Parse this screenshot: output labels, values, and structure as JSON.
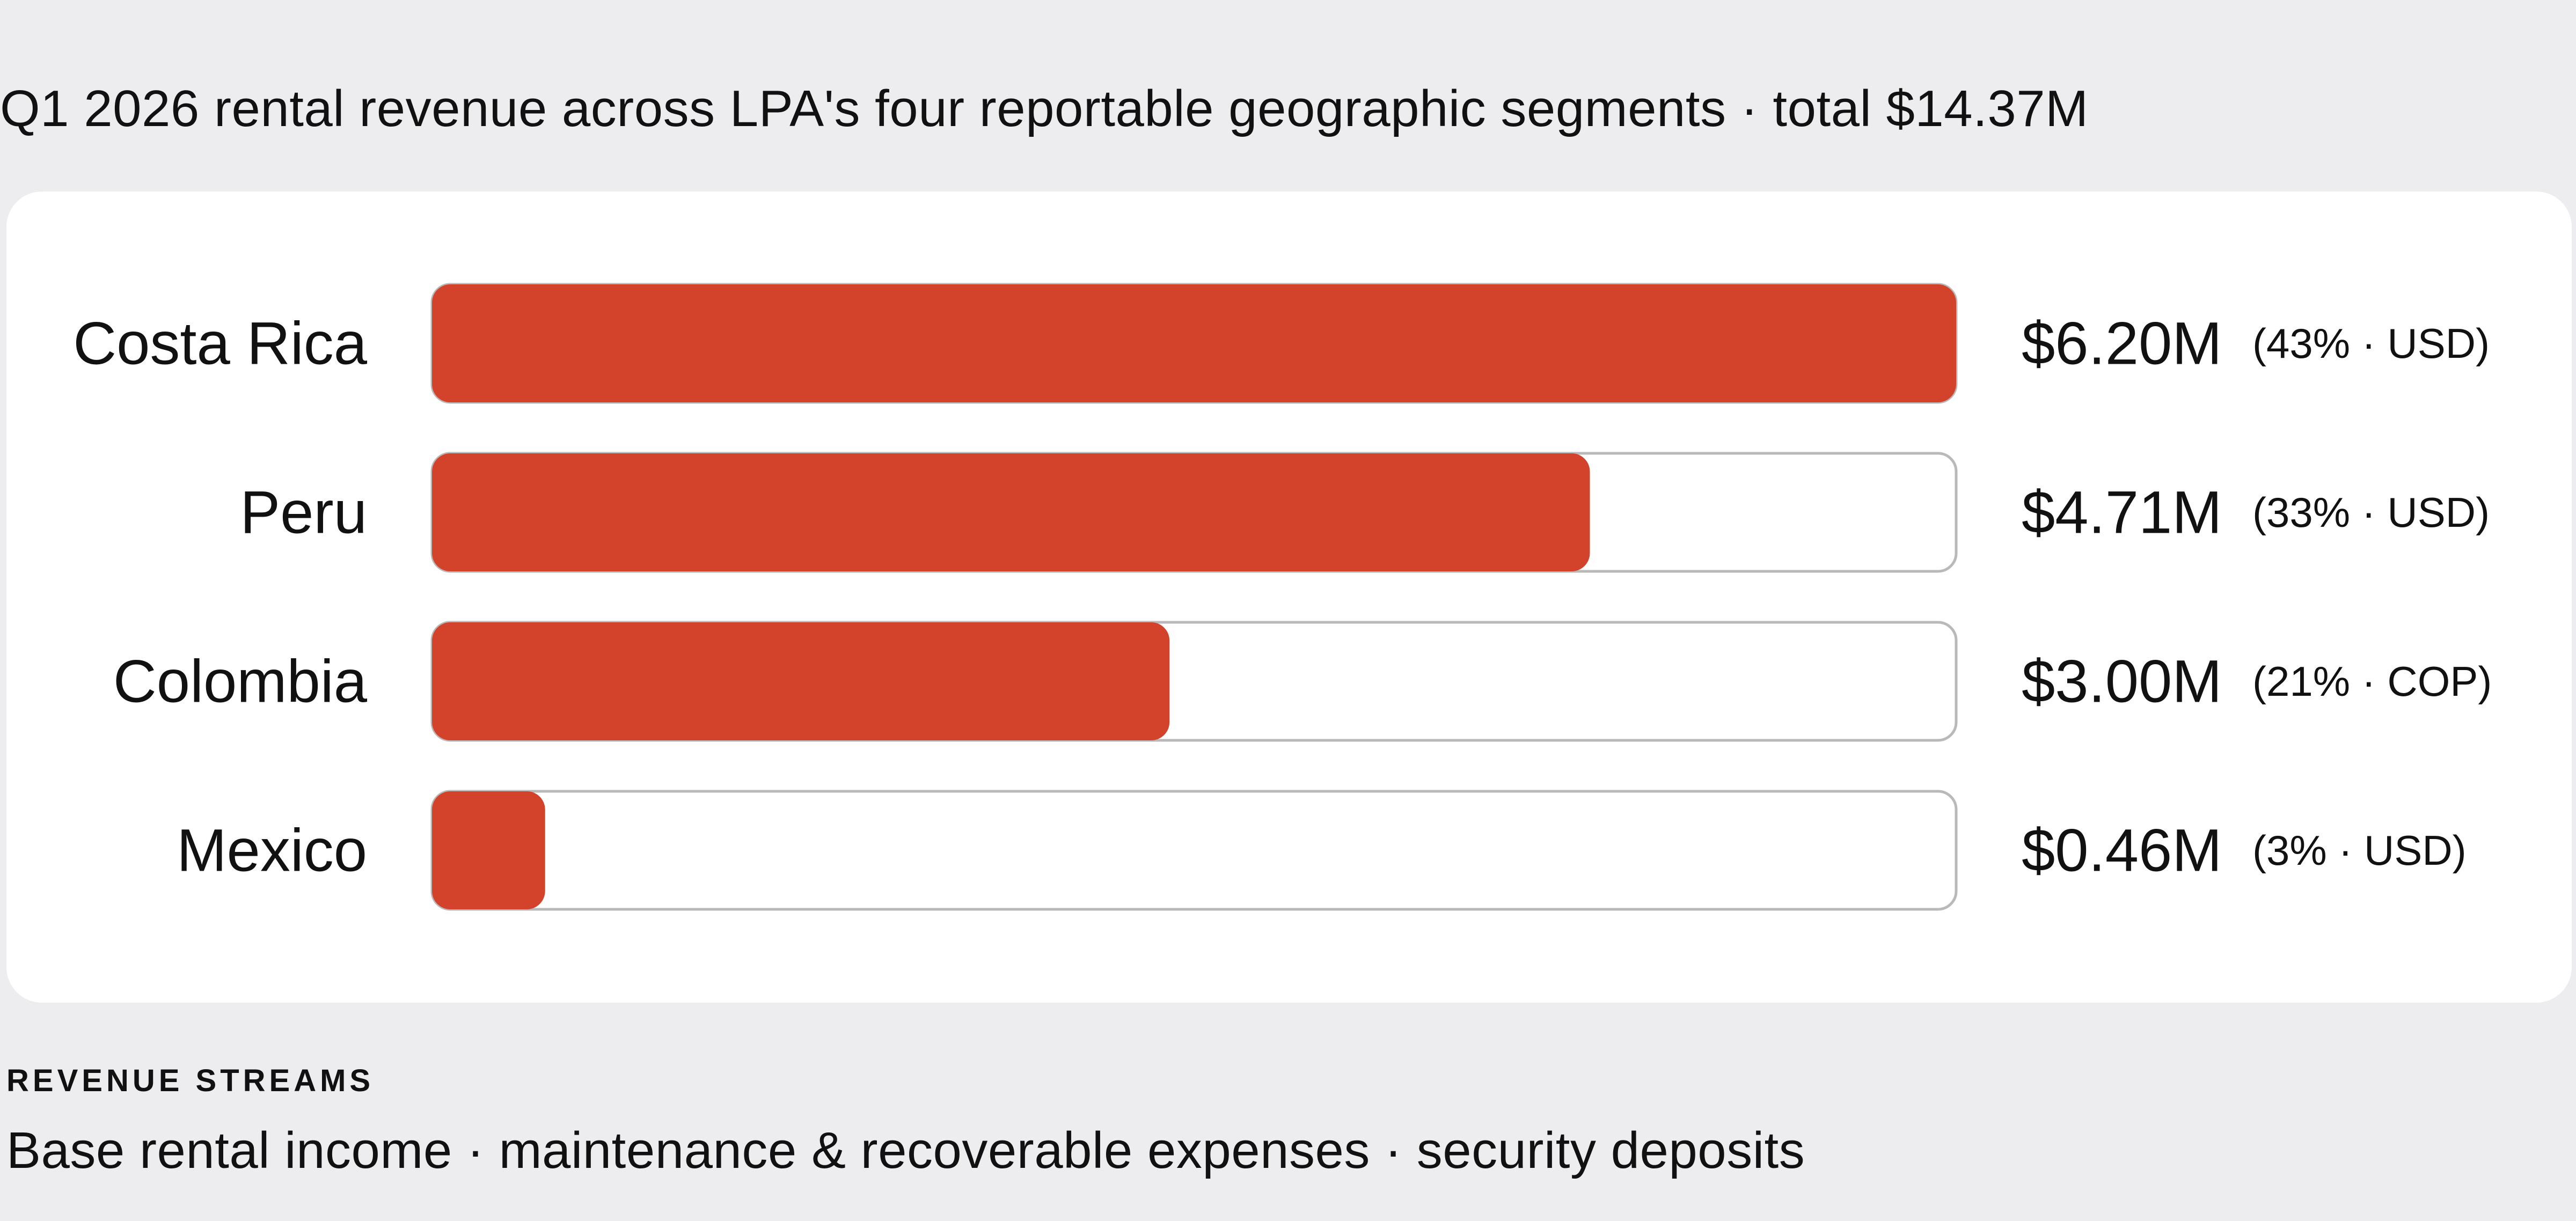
{
  "title": "Q1 2026 rental revenue across LPA's four reportable geographic segments · total $14.37M",
  "colors": {
    "bar_fill": "#d3432b",
    "track_border": "#b9b9b9",
    "card_bg": "#ffffff",
    "page_bg": "#ededef"
  },
  "chart_data": {
    "type": "bar",
    "orientation": "horizontal",
    "categories": [
      "Costa Rica",
      "Peru",
      "Colombia",
      "Mexico"
    ],
    "values": [
      6.2,
      4.71,
      3.0,
      0.46
    ],
    "value_labels": [
      "$6.20M",
      "$4.71M",
      "$3.00M",
      "$0.46M"
    ],
    "notes": [
      "(43% · USD)",
      "(33% · USD)",
      "(21% · COP)",
      "(3% · USD)"
    ],
    "xlim": [
      0,
      6.2
    ],
    "grid": false,
    "legend": "none"
  },
  "streams": {
    "heading": "REVENUE STREAMS",
    "text": "Base rental income · maintenance & recoverable expenses · security deposits"
  }
}
